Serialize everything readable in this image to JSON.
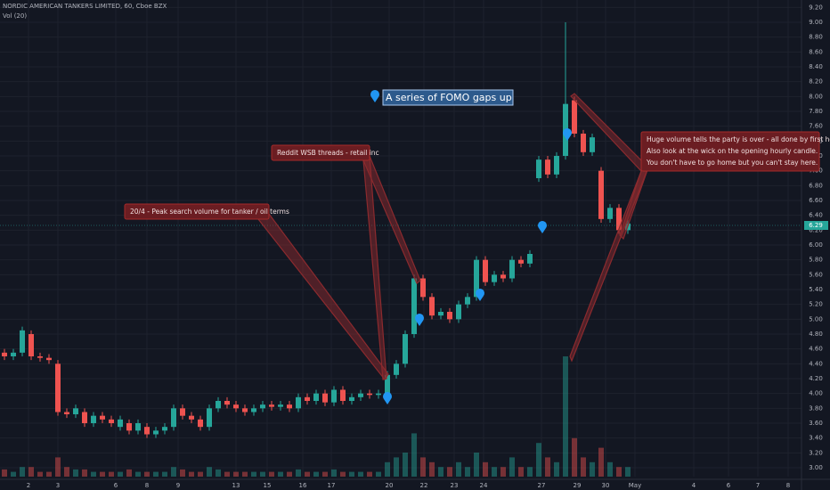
{
  "chart_data": {
    "type": "candlestick",
    "title": "NORDIC AMERICAN TANKERS LIMITED, 60, Cboe BZX",
    "volume_label": "Vol (20)",
    "last_price_label": "6.29",
    "up_color": "#26a69a",
    "down_color": "#ef5350",
    "xlim": [
      -0.5,
      89.5
    ],
    "ylim": [
      2.88,
      9.3
    ],
    "grid": true,
    "x": [
      0,
      1,
      2,
      3,
      4,
      5,
      6,
      7,
      8,
      9,
      10,
      11,
      12,
      13,
      14,
      15,
      16,
      17,
      18,
      19,
      20,
      21,
      22,
      23,
      24,
      25,
      26,
      27,
      28,
      29,
      30,
      31,
      32,
      33,
      34,
      35,
      36,
      37,
      38,
      39,
      40,
      41,
      42,
      43,
      44,
      45,
      46,
      47,
      48,
      49,
      50,
      51,
      52,
      53,
      54,
      55,
      56,
      57,
      58,
      59,
      60,
      61,
      62,
      63,
      64,
      65,
      66,
      67,
      68,
      69,
      70
    ],
    "open": [
      4.55,
      4.5,
      4.55,
      4.8,
      4.5,
      4.48,
      4.4,
      3.75,
      3.72,
      3.75,
      3.6,
      3.7,
      3.65,
      3.55,
      3.6,
      3.5,
      3.55,
      3.45,
      3.5,
      3.55,
      3.8,
      3.7,
      3.65,
      3.55,
      3.8,
      3.9,
      3.85,
      3.8,
      3.75,
      3.8,
      3.85,
      3.82,
      3.85,
      3.8,
      3.95,
      3.9,
      4.0,
      3.88,
      4.05,
      3.9,
      3.95,
      4.0,
      3.98,
      4.0,
      4.25,
      4.4,
      4.8,
      5.55,
      5.3,
      5.05,
      5.1,
      5.0,
      5.2,
      5.3,
      5.8,
      5.5,
      5.6,
      5.55,
      5.8,
      5.75,
      6.9,
      7.15,
      6.95,
      7.2,
      7.95,
      7.5,
      7.25,
      7.0,
      6.35,
      6.5,
      6.2
    ],
    "high": [
      4.6,
      4.6,
      4.9,
      4.85,
      4.55,
      4.53,
      4.45,
      3.8,
      3.85,
      3.8,
      3.75,
      3.75,
      3.7,
      3.7,
      3.65,
      3.65,
      3.6,
      3.55,
      3.6,
      3.85,
      3.85,
      3.75,
      3.7,
      3.85,
      3.95,
      3.95,
      3.9,
      3.85,
      3.85,
      3.9,
      3.9,
      3.9,
      3.9,
      4.0,
      4.0,
      4.05,
      4.05,
      4.1,
      4.1,
      4.0,
      4.05,
      4.05,
      4.05,
      4.3,
      4.45,
      4.85,
      5.6,
      5.6,
      5.35,
      5.15,
      5.15,
      5.25,
      5.35,
      5.85,
      5.85,
      5.65,
      5.65,
      5.85,
      5.85,
      5.93,
      7.2,
      7.2,
      7.25,
      9.0,
      8.0,
      7.55,
      7.5,
      7.05,
      6.55,
      6.55,
      6.34
    ],
    "low": [
      4.45,
      4.45,
      4.5,
      4.45,
      4.43,
      4.4,
      3.7,
      3.67,
      3.67,
      3.55,
      3.55,
      3.6,
      3.55,
      3.5,
      3.45,
      3.45,
      3.4,
      3.4,
      3.45,
      3.5,
      3.65,
      3.6,
      3.5,
      3.5,
      3.75,
      3.8,
      3.75,
      3.7,
      3.7,
      3.75,
      3.77,
      3.77,
      3.75,
      3.75,
      3.85,
      3.85,
      3.83,
      3.83,
      3.85,
      3.85,
      3.9,
      3.93,
      3.93,
      3.95,
      4.2,
      4.35,
      4.75,
      5.25,
      5.0,
      5.0,
      4.95,
      4.95,
      5.15,
      5.25,
      5.45,
      5.45,
      5.5,
      5.5,
      5.7,
      5.7,
      6.85,
      6.9,
      6.9,
      7.15,
      7.45,
      7.2,
      7.2,
      6.3,
      6.3,
      6.15,
      6.15
    ],
    "close": [
      4.5,
      4.55,
      4.85,
      4.5,
      4.48,
      4.45,
      3.75,
      3.72,
      3.8,
      3.6,
      3.7,
      3.65,
      3.6,
      3.65,
      3.5,
      3.6,
      3.45,
      3.5,
      3.55,
      3.8,
      3.7,
      3.65,
      3.55,
      3.8,
      3.9,
      3.85,
      3.8,
      3.75,
      3.8,
      3.85,
      3.82,
      3.85,
      3.8,
      3.95,
      3.9,
      4.0,
      3.88,
      4.05,
      3.9,
      3.95,
      4.0,
      3.98,
      4.0,
      4.25,
      4.4,
      4.8,
      5.55,
      5.3,
      5.05,
      5.1,
      5.0,
      5.2,
      5.3,
      5.8,
      5.5,
      5.6,
      5.55,
      5.8,
      5.75,
      5.88,
      7.15,
      6.95,
      7.2,
      7.9,
      7.5,
      7.25,
      7.45,
      6.35,
      6.5,
      6.2,
      6.29
    ],
    "volume": [
      1.5,
      1,
      2,
      2,
      1,
      1,
      4,
      2,
      1.5,
      1.5,
      1,
      1,
      1,
      1,
      1.5,
      1,
      1,
      1,
      1,
      2,
      1.5,
      1,
      1,
      2,
      1.5,
      1,
      1,
      1,
      1,
      1,
      1,
      1,
      1,
      1.5,
      1,
      1,
      1,
      1.5,
      1,
      1,
      1,
      1,
      1,
      3,
      4,
      5,
      9,
      4,
      3,
      2,
      2,
      3,
      2,
      5,
      3,
      2,
      2,
      4,
      2,
      2,
      7,
      4,
      3,
      25,
      8,
      4,
      3,
      6,
      3,
      2,
      2
    ],
    "xticks": [
      {
        "value": 2.7,
        "label": "2"
      },
      {
        "value": 6,
        "label": "3"
      },
      {
        "value": 12.5,
        "label": "6"
      },
      {
        "value": 16,
        "label": "8"
      },
      {
        "value": 19.5,
        "label": "9"
      },
      {
        "value": 26,
        "label": "13"
      },
      {
        "value": 29.5,
        "label": "15"
      },
      {
        "value": 33.5,
        "label": "16"
      },
      {
        "value": 36.7,
        "label": "17"
      },
      {
        "value": 43.2,
        "label": "20"
      },
      {
        "value": 47.1,
        "label": "22"
      },
      {
        "value": 50.5,
        "label": "23"
      },
      {
        "value": 53.8,
        "label": "24"
      },
      {
        "value": 60.3,
        "label": "27"
      },
      {
        "value": 64.3,
        "label": "29"
      },
      {
        "value": 67.5,
        "label": "30"
      },
      {
        "value": 70.8,
        "label": "May"
      },
      {
        "value": 77.4,
        "label": "4"
      },
      {
        "value": 81.3,
        "label": "6"
      },
      {
        "value": 84.6,
        "label": "7"
      },
      {
        "value": 88,
        "label": "8"
      }
    ],
    "yticks": [
      {
        "value": 3.0,
        "label": "3.00"
      },
      {
        "value": 3.2,
        "label": "3.20"
      },
      {
        "value": 3.4,
        "label": "3.40"
      },
      {
        "value": 3.6,
        "label": "3.60"
      },
      {
        "value": 3.8,
        "label": "3.80"
      },
      {
        "value": 4.0,
        "label": "4.00"
      },
      {
        "value": 4.2,
        "label": "4.20"
      },
      {
        "value": 4.4,
        "label": "4.40"
      },
      {
        "value": 4.6,
        "label": "4.60"
      },
      {
        "value": 4.8,
        "label": "4.80"
      },
      {
        "value": 5.0,
        "label": "5.00"
      },
      {
        "value": 5.2,
        "label": "5.20"
      },
      {
        "value": 5.4,
        "label": "5.40"
      },
      {
        "value": 5.6,
        "label": "5.60"
      },
      {
        "value": 5.8,
        "label": "5.80"
      },
      {
        "value": 6.0,
        "label": "6.00"
      },
      {
        "value": 6.2,
        "label": "6.20"
      },
      {
        "value": 6.4,
        "label": "6.40"
      },
      {
        "value": 6.6,
        "label": "6.60"
      },
      {
        "value": 6.8,
        "label": "6.80"
      },
      {
        "value": 7.0,
        "label": "7.00"
      },
      {
        "value": 7.2,
        "label": "7.20"
      },
      {
        "value": 7.4,
        "label": "7.40"
      },
      {
        "value": 7.6,
        "label": "7.60"
      },
      {
        "value": 7.8,
        "label": "7.80"
      },
      {
        "value": 8.0,
        "label": "8.00"
      },
      {
        "value": 8.2,
        "label": "8.20"
      },
      {
        "value": 8.4,
        "label": "8.40"
      },
      {
        "value": 8.6,
        "label": "8.60"
      },
      {
        "value": 8.8,
        "label": "8.80"
      },
      {
        "value": 9.0,
        "label": "9.00"
      },
      {
        "value": 9.2,
        "label": "9.20"
      }
    ],
    "annotations": [
      "20/4 - Peak search volume for tanker / oil terms",
      "Reddit WSB threads - retail inc",
      "A series of FOMO gaps up",
      "Huge volume tells the party is over - all done by first hour c",
      "Also look at the wick on the opening hourly candle.",
      "You don't have to go home but you can't stay here."
    ]
  }
}
